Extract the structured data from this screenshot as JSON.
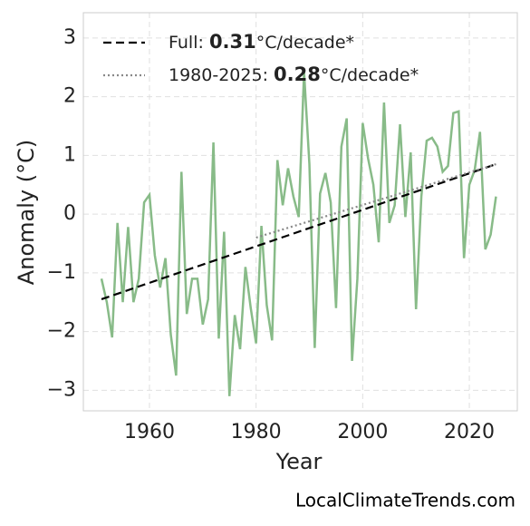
{
  "chart_data": {
    "type": "line",
    "xlabel": "Year",
    "ylabel": "Anomaly (°C)",
    "footer": "LocalClimateTrends.com",
    "x": [
      1951,
      1952,
      1953,
      1954,
      1955,
      1956,
      1957,
      1958,
      1959,
      1960,
      1961,
      1962,
      1963,
      1964,
      1965,
      1966,
      1967,
      1968,
      1969,
      1970,
      1971,
      1972,
      1973,
      1974,
      1975,
      1976,
      1977,
      1978,
      1979,
      1980,
      1981,
      1982,
      1983,
      1984,
      1985,
      1986,
      1987,
      1988,
      1989,
      1990,
      1991,
      1992,
      1993,
      1994,
      1995,
      1996,
      1997,
      1998,
      1999,
      2000,
      2001,
      2002,
      2003,
      2004,
      2005,
      2006,
      2007,
      2008,
      2009,
      2010,
      2011,
      2012,
      2013,
      2014,
      2015,
      2016,
      2017,
      2018,
      2019,
      2020,
      2021,
      2022,
      2023,
      2024,
      2025
    ],
    "series": [
      {
        "color": "#88bb88",
        "values": [
          -1.1,
          -1.5,
          -2.1,
          -0.15,
          -1.5,
          -0.22,
          -1.5,
          -1.1,
          0.2,
          0.33,
          -0.7,
          -1.25,
          -0.75,
          -2.05,
          -2.75,
          0.72,
          -1.7,
          -1.1,
          -1.1,
          -1.88,
          -1.45,
          1.22,
          -2.12,
          -0.3,
          -3.1,
          -1.72,
          -2.3,
          -0.9,
          -1.6,
          -2.2,
          -0.2,
          -1.55,
          -2.15,
          0.92,
          0.15,
          0.78,
          0.3,
          -0.05,
          2.42,
          0.85,
          -2.28,
          0.35,
          0.7,
          0.2,
          -1.6,
          1.15,
          1.63,
          -2.5,
          -1.1,
          1.55,
          0.95,
          0.5,
          -0.48,
          1.9,
          -0.15,
          0.15,
          1.53,
          -0.05,
          1.05,
          -1.62,
          0.3,
          1.25,
          1.3,
          1.15,
          0.72,
          0.82,
          1.72,
          1.75,
          -0.75,
          0.5,
          0.75,
          1.4,
          -0.6,
          -0.35,
          0.3
        ]
      }
    ],
    "trends": [
      {
        "label_parts": [
          "Full: ",
          "0.31",
          "°C/decade*"
        ],
        "color": "#000000",
        "dash": "dashed",
        "x": [
          1951,
          2025
        ],
        "values": [
          -1.45,
          0.85
        ]
      },
      {
        "label_parts": [
          "1980-2025: ",
          "0.28",
          "°C/decade*"
        ],
        "color": "#888888",
        "dash": "dotted",
        "x": [
          1980,
          2025
        ],
        "values": [
          -0.4,
          0.85
        ]
      }
    ],
    "xlim": [
      1947.6,
      2029
    ],
    "ylim": [
      -3.35,
      3.43
    ],
    "xticks": [
      1960,
      1980,
      2000,
      2020
    ],
    "yticks": [
      {
        "value": -3,
        "label": "−3"
      },
      {
        "value": -2,
        "label": "−2"
      },
      {
        "value": -1,
        "label": "−1"
      },
      0,
      1,
      2,
      3
    ],
    "grid": true
  }
}
